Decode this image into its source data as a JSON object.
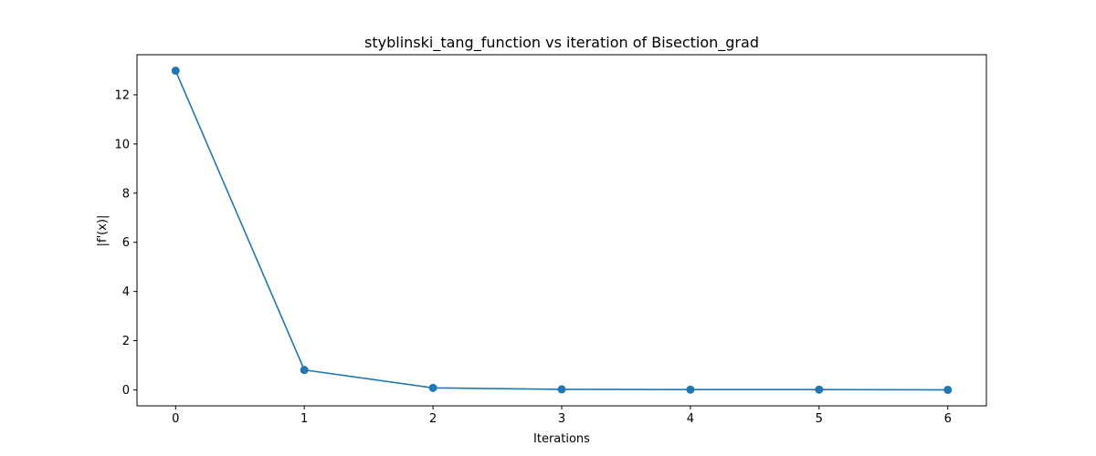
{
  "chart_data": {
    "type": "line",
    "title": "styblinski_tang_function vs iteration of Bisection_grad",
    "xlabel": "Iterations",
    "ylabel": "|f'(x)|",
    "x": [
      0,
      1,
      2,
      3,
      4,
      5,
      6
    ],
    "series": [
      {
        "values": [
          12.98,
          0.81,
          0.08,
          0.02,
          0.01,
          0.01,
          0.0
        ],
        "color": "#1f77b4",
        "marker": "circle"
      }
    ],
    "xlim": [
      -0.3,
      6.3
    ],
    "ylim": [
      -0.65,
      13.63
    ],
    "xticks": [
      0,
      1,
      2,
      3,
      4,
      5,
      6
    ],
    "yticks": [
      0,
      2,
      4,
      6,
      8,
      10,
      12
    ],
    "grid": false,
    "legend": "none"
  }
}
